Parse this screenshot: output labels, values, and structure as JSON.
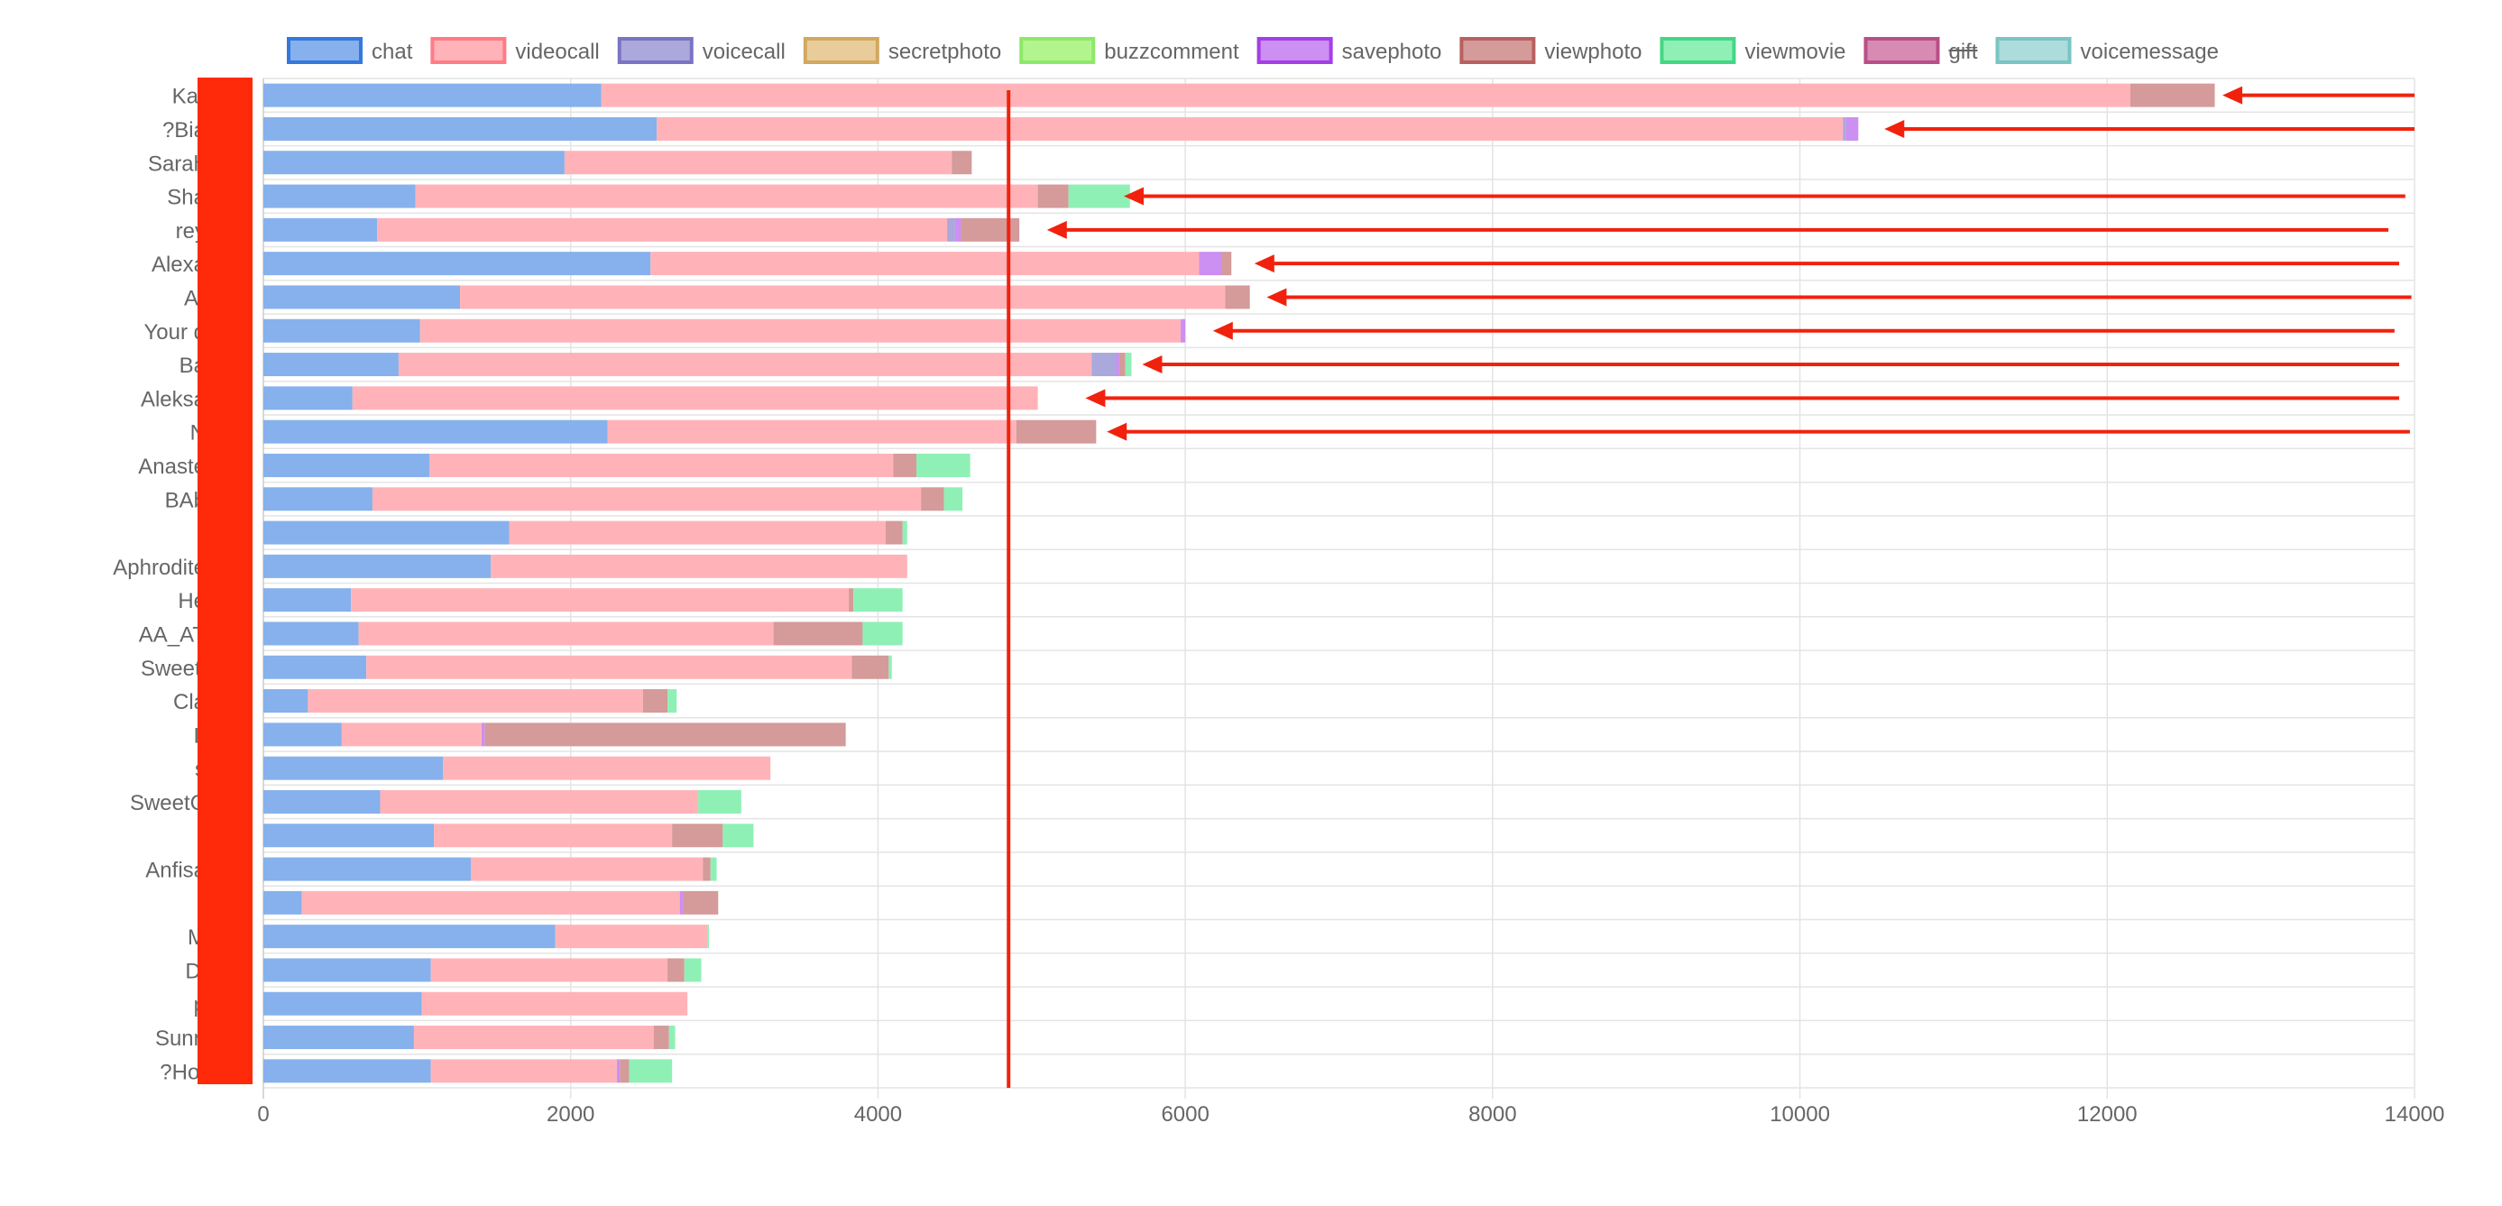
{
  "chart_data": {
    "type": "bar",
    "orientation": "horizontal",
    "stacked": true,
    "xlim": [
      0,
      14000
    ],
    "x_ticks": [
      "0",
      "2000",
      "4000",
      "6000",
      "8000",
      "10000",
      "12000",
      "14000"
    ],
    "grid": true,
    "legend_position": "top",
    "legend": [
      {
        "name": "chat",
        "fill": "#86b1ec",
        "stroke": "#3478dc"
      },
      {
        "name": "videocall",
        "fill": "#ffb3b8",
        "stroke": "#ff7b86"
      },
      {
        "name": "voicecall",
        "fill": "#aba8dc",
        "stroke": "#7a74c4"
      },
      {
        "name": "secretphoto",
        "fill": "#e8cd9b",
        "stroke": "#d2a85e"
      },
      {
        "name": "buzzcomment",
        "fill": "#b2f58f",
        "stroke": "#8ee869"
      },
      {
        "name": "savephoto",
        "fill": "#cc8ff2",
        "stroke": "#a43ee6"
      },
      {
        "name": "viewphoto",
        "fill": "#d59a9a",
        "stroke": "#b86060"
      },
      {
        "name": "viewmovie",
        "fill": "#8ff0b5",
        "stroke": "#44d685"
      },
      {
        "name": "gift",
        "fill": "#d88bb2",
        "stroke": "#b84f86",
        "hidden": true
      },
      {
        "name": "voicemessage",
        "fill": "#acdcdc",
        "stroke": "#7ac4c4"
      }
    ],
    "categories": [
      "Kar",
      "?Bia",
      "Sarah",
      "Sha",
      "rey",
      "Alexa",
      "Ar",
      "Your d",
      "Ba",
      "Aleksa",
      "N",
      "Anaste",
      "BAb",
      "",
      "Aphrodite",
      "He",
      "AA_AT",
      "Sweetl",
      "Cla",
      "L",
      "s",
      "SweetC",
      "",
      "Anfisa",
      "",
      "M",
      "Dl",
      "p",
      "Sunn",
      "?Hot"
    ],
    "series": [
      {
        "name": "chat",
        "values": [
          2200,
          2560,
          1960,
          990,
          740,
          2520,
          1280,
          1020,
          880,
          580,
          2240,
          1080,
          710,
          1600,
          1480,
          570,
          620,
          670,
          290,
          510,
          1170,
          760,
          1110,
          1350,
          250,
          1900,
          1090,
          1030,
          980,
          1090
        ]
      },
      {
        "name": "videocall",
        "values": [
          9950,
          7720,
          2520,
          4050,
          3710,
          3570,
          4980,
          4950,
          4510,
          4460,
          2660,
          3020,
          3570,
          2450,
          2710,
          3240,
          2700,
          3160,
          2180,
          910,
          2130,
          2070,
          1550,
          1510,
          2460,
          990,
          1540,
          1730,
          1560,
          1210
        ]
      },
      {
        "name": "voicecall",
        "values": [
          0,
          20,
          0,
          0,
          50,
          0,
          0,
          0,
          160,
          0,
          0,
          0,
          0,
          0,
          0,
          0,
          0,
          0,
          0,
          0,
          0,
          0,
          0,
          0,
          0,
          0,
          0,
          0,
          0,
          0
        ]
      },
      {
        "name": "secretphoto",
        "values": [
          0,
          0,
          0,
          0,
          0,
          0,
          0,
          0,
          0,
          0,
          0,
          0,
          0,
          0,
          0,
          0,
          0,
          0,
          0,
          0,
          0,
          0,
          0,
          0,
          0,
          0,
          0,
          0,
          0,
          0
        ]
      },
      {
        "name": "buzzcomment",
        "values": [
          0,
          0,
          0,
          0,
          0,
          0,
          0,
          0,
          0,
          0,
          0,
          0,
          0,
          0,
          0,
          0,
          0,
          0,
          0,
          0,
          0,
          0,
          0,
          0,
          0,
          0,
          0,
          0,
          0,
          0
        ]
      },
      {
        "name": "savephoto",
        "values": [
          0,
          80,
          0,
          0,
          40,
          150,
          0,
          30,
          20,
          0,
          0,
          0,
          0,
          0,
          0,
          0,
          0,
          0,
          0,
          20,
          0,
          0,
          0,
          0,
          20,
          0,
          0,
          0,
          0,
          20
        ]
      },
      {
        "name": "viewphoto",
        "values": [
          550,
          0,
          130,
          200,
          380,
          60,
          160,
          0,
          40,
          0,
          520,
          150,
          150,
          110,
          0,
          30,
          580,
          240,
          160,
          2350,
          0,
          0,
          330,
          50,
          230,
          0,
          110,
          0,
          100,
          60
        ]
      },
      {
        "name": "viewmovie",
        "values": [
          0,
          0,
          0,
          400,
          0,
          0,
          0,
          0,
          40,
          0,
          0,
          350,
          120,
          30,
          0,
          320,
          260,
          20,
          60,
          0,
          0,
          280,
          200,
          40,
          0,
          10,
          110,
          0,
          40,
          280
        ]
      },
      {
        "name": "gift",
        "values": [
          0,
          0,
          0,
          0,
          0,
          0,
          0,
          0,
          0,
          0,
          0,
          0,
          0,
          0,
          0,
          0,
          0,
          0,
          0,
          0,
          0,
          0,
          0,
          0,
          0,
          0,
          0,
          0,
          0,
          0
        ]
      },
      {
        "name": "voicemessage",
        "values": [
          0,
          0,
          0,
          0,
          0,
          0,
          0,
          0,
          0,
          0,
          0,
          0,
          0,
          0,
          0,
          0,
          0,
          0,
          0,
          0,
          0,
          0,
          0,
          0,
          0,
          0,
          0,
          0,
          0,
          0
        ]
      }
    ],
    "annotations": {
      "reference_line_x": 4850,
      "redaction_color": "#ff2a0a",
      "arrow_color": "#f0220e",
      "arrows": [
        {
          "row": 0,
          "tip_x": 12750,
          "tail_x": 14000
        },
        {
          "row": 1,
          "tip_x": 10550,
          "tail_x": 14000
        },
        {
          "row": 3,
          "tip_x": 5600,
          "tail_x": 13940
        },
        {
          "row": 4,
          "tip_x": 5100,
          "tail_x": 13830
        },
        {
          "row": 5,
          "tip_x": 6450,
          "tail_x": 13900
        },
        {
          "row": 6,
          "tip_x": 6530,
          "tail_x": 13980
        },
        {
          "row": 7,
          "tip_x": 6180,
          "tail_x": 13870
        },
        {
          "row": 8,
          "tip_x": 5720,
          "tail_x": 13900
        },
        {
          "row": 9,
          "tip_x": 5350,
          "tail_x": 13900
        },
        {
          "row": 10,
          "tip_x": 5490,
          "tail_x": 13970
        }
      ]
    }
  }
}
